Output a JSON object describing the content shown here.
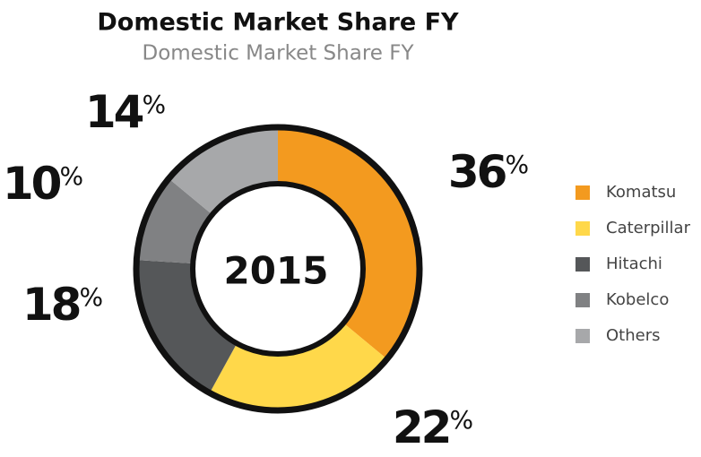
{
  "chart_data": {
    "type": "pie",
    "donut": true,
    "title": "Domestic Market Share FY",
    "subtitle": "Domestic Market Share FY",
    "center_label": "2015",
    "categories": [
      "Komatsu",
      "Caterpillar",
      "Hitachi",
      "Kobelco",
      "Others"
    ],
    "values": [
      36,
      22,
      18,
      10,
      14
    ],
    "value_labels": [
      "36%",
      "22%",
      "18%",
      "10%",
      "14%"
    ],
    "colors": [
      "#f39a1f",
      "#ffd84a",
      "#555759",
      "#808183",
      "#a7a8aa"
    ],
    "legend": "right"
  }
}
